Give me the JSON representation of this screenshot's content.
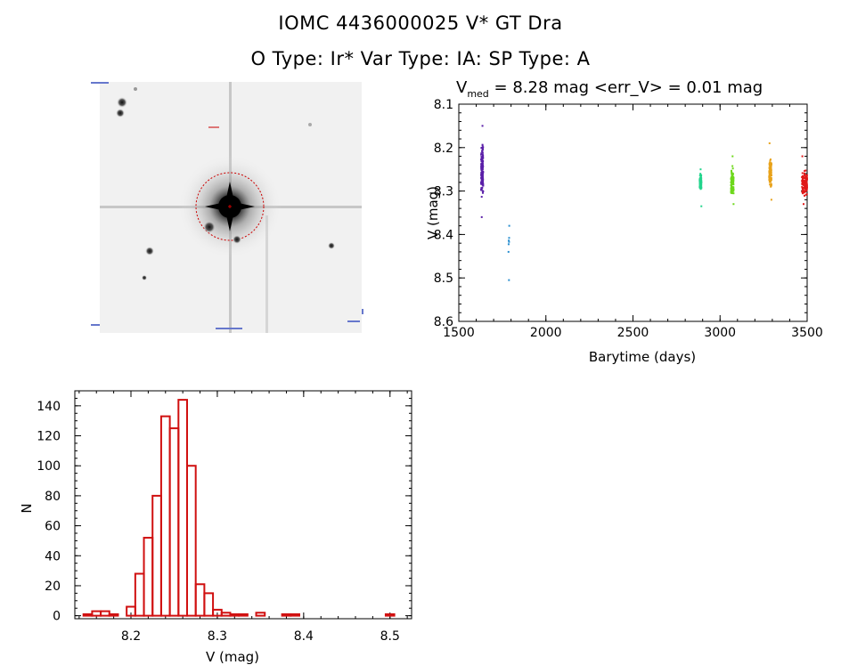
{
  "header": {
    "title_line1": "IOMC 4436000025    V* GT Dra",
    "title_line2": "O Type: Ir*  Var Type: IA:  SP Type: A"
  },
  "finder": {
    "circle_color": "#cc0000"
  },
  "chart_data": [
    {
      "type": "scatter",
      "title_prefix": "V",
      "title_subscript": "med",
      "title_rest": " = 8.28 mag <err_V> = 0.01 mag",
      "xlabel": "Barytime (days)",
      "ylabel": "V (mag)",
      "xlim": [
        1500,
        3500
      ],
      "ylim": [
        8.6,
        8.1
      ],
      "y_inverted": true,
      "xticks": [
        1500,
        2000,
        2500,
        3000,
        3500
      ],
      "xtick_labels": [
        "1500",
        "2000",
        "2500",
        "3000",
        "3500"
      ],
      "yticks": [
        8.1,
        8.2,
        8.3,
        8.4,
        8.5,
        8.6
      ],
      "ytick_labels": [
        "8.1",
        "8.2",
        "8.3",
        "8.4",
        "8.5",
        "8.6"
      ],
      "grid": false,
      "series": [
        {
          "color": "#5a1fa8",
          "x_range": [
            1628,
            1640
          ],
          "y_range": [
            8.15,
            8.36
          ],
          "center": 8.25,
          "count": 130
        },
        {
          "color": "#2a8fd0",
          "x_range": [
            1785,
            1790
          ],
          "y_range": [
            8.38,
            8.44
          ],
          "center": 8.41,
          "count": 6,
          "extra_points": [
            [
              1788,
              8.505
            ]
          ]
        },
        {
          "color": "#22d48c",
          "x_range": [
            2883,
            2893
          ],
          "y_range": [
            8.25,
            8.335
          ],
          "center": 8.28,
          "count": 80
        },
        {
          "color": "#6ed81c",
          "x_range": [
            3063,
            3078
          ],
          "y_range": [
            8.22,
            8.33
          ],
          "center": 8.28,
          "count": 110
        },
        {
          "color": "#e8a21a",
          "x_range": [
            3282,
            3295
          ],
          "y_range": [
            8.19,
            8.32
          ],
          "center": 8.26,
          "count": 110
        },
        {
          "color": "#e01818",
          "x_range": [
            3470,
            3500
          ],
          "y_range": [
            8.22,
            8.33
          ],
          "center": 8.28,
          "count": 120
        }
      ]
    },
    {
      "type": "bar",
      "xlabel": "V (mag)",
      "ylabel": "N",
      "xlim": [
        8.135,
        8.525
      ],
      "ylim": [
        -2,
        150
      ],
      "xticks": [
        8.2,
        8.3,
        8.4,
        8.5
      ],
      "xtick_labels": [
        "8.2",
        "8.3",
        "8.4",
        "8.5"
      ],
      "yticks": [
        0,
        20,
        40,
        60,
        80,
        100,
        120,
        140
      ],
      "ytick_labels": [
        "0",
        "20",
        "40",
        "60",
        "80",
        "100",
        "120",
        "140"
      ],
      "bin_width": 0.01,
      "bin_starts": [
        8.145,
        8.155,
        8.165,
        8.175,
        8.185,
        8.195,
        8.205,
        8.215,
        8.225,
        8.235,
        8.245,
        8.255,
        8.265,
        8.275,
        8.285,
        8.295,
        8.305,
        8.315,
        8.325,
        8.335,
        8.345,
        8.355,
        8.365,
        8.375,
        8.385,
        8.395,
        8.405,
        8.415,
        8.425,
        8.435,
        8.445,
        8.455,
        8.465,
        8.475,
        8.485,
        8.495,
        8.505
      ],
      "values": [
        1,
        3,
        3,
        1,
        0,
        6,
        28,
        52,
        80,
        133,
        125,
        144,
        100,
        21,
        15,
        4,
        2,
        1,
        1,
        0,
        2,
        0,
        0,
        1,
        1,
        0,
        0,
        0,
        0,
        0,
        0,
        0,
        0,
        0,
        0,
        1,
        0
      ],
      "color": "#d01010"
    }
  ]
}
